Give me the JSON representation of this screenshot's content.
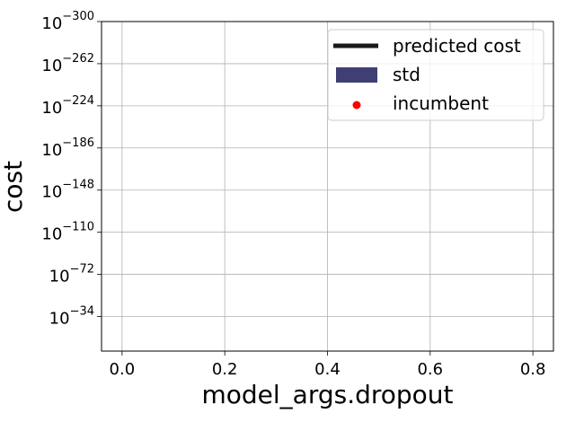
{
  "chart_data": {
    "type": "line",
    "xlabel": "model_args.dropout",
    "ylabel": "cost",
    "xlim": [
      -0.04,
      0.84
    ],
    "x_ticks": [
      0.0,
      0.2,
      0.4,
      0.6,
      0.8
    ],
    "x_tick_labels": [
      "0.0",
      "0.2",
      "0.4",
      "0.6",
      "0.8"
    ],
    "y_scale": "log",
    "y_ticks": [
      {
        "base": "10",
        "exp": "−34"
      },
      {
        "base": "10",
        "exp": "−72"
      },
      {
        "base": "10",
        "exp": "−110"
      },
      {
        "base": "10",
        "exp": "−148"
      },
      {
        "base": "10",
        "exp": "−186"
      },
      {
        "base": "10",
        "exp": "−224"
      },
      {
        "base": "10",
        "exp": "−262"
      },
      {
        "base": "10",
        "exp": "−300"
      }
    ],
    "grid": true,
    "legend_position": "upper right",
    "series": [
      {
        "name": "predicted cost",
        "kind": "line",
        "color": "#1a1a1a",
        "x": [],
        "y": []
      },
      {
        "name": "std",
        "kind": "band",
        "color": "#3f3f74",
        "x": [],
        "y": []
      },
      {
        "name": "incumbent",
        "kind": "point",
        "color": "#ff0000",
        "x": [],
        "y": []
      }
    ]
  }
}
